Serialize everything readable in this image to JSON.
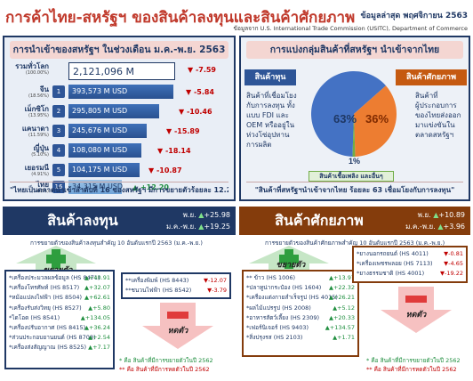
{
  "header": {
    "title": "การค้าไทย-สหรัฐฯ ของสินค้าลงทุนและสินค้าศักยภาพ",
    "update": "ข้อมูลล่าสุด พฤศจิกายน 2563",
    "source": "ข้อมูลจาก U.S. International Trade Commission (USITC), Department of Commerce"
  },
  "imports": {
    "title": "การนำเข้าของสหรัฐฯ ในช่วงเดือน ม.ค.-พ.ย. 2563",
    "rows": [
      {
        "rank": "",
        "country": "รวมทั่วโลก",
        "pct": "(100.00%)",
        "value": "2,121,096 M",
        "change": "-7.59",
        "dir": "down"
      },
      {
        "rank": "1",
        "country": "จีน",
        "pct": "(18.56%)",
        "value": "393,573 M USD",
        "change": "-5.84",
        "dir": "down"
      },
      {
        "rank": "2",
        "country": "เม็กซิโก",
        "pct": "(13.95%)",
        "value": "295,805 M USD",
        "change": "-10.46",
        "dir": "down"
      },
      {
        "rank": "3",
        "country": "แคนาดา",
        "pct": "(11.59%)",
        "value": "245,676 M USD",
        "change": "-15.89",
        "dir": "down"
      },
      {
        "rank": "4",
        "country": "ญี่ปุ่น",
        "pct": "(5.10%)",
        "value": "108,080 M USD",
        "change": "-18.14",
        "dir": "down"
      },
      {
        "rank": "5",
        "country": "เยอรมนี",
        "pct": "(4.91%)",
        "value": "104,175 M USD",
        "change": "-10.87",
        "dir": "down"
      },
      {
        "rank": "16",
        "country": "ไทย",
        "pct": "(1.62%)",
        "value": "34,315 M USD",
        "change": "+12.20",
        "dir": "up"
      }
    ],
    "quote": "\"ไทยเป็นตลาดนำเข้าลำดับที่ 16 ของสหรัฐฯ มีการขยายตัวร้อยละ 12.20\""
  },
  "share": {
    "title": "การแบ่งกลุ่มสินค้าที่สหรัฐฯ นำเข้าจากไทย",
    "capital_label": "สินค้าทุน",
    "potential_label": "สินค้าศักยภาพ",
    "fuel_label": "สินค้าเชื้อเพลิง และอื่นๆ",
    "capital_desc": [
      "สินค้าที่เชื่อมโยง",
      "กับการลงทุน ทั้ง",
      "แบบ FDI และ",
      "OEM หรืออยู่ใน",
      "ห่วงโซ่อุปทาน",
      "การผลิต"
    ],
    "potential_desc": [
      "สินค้าที่",
      "ผู้ประกอบการ",
      "ของไทยส่งออก",
      "มาแข่งขันใน",
      "ตลาดสหรัฐฯ"
    ],
    "pie_labels": {
      "capital": "63%",
      "potential": "36%",
      "fuel": "1%"
    },
    "quote": "\"สินค้าที่สหรัฐฯนำเข้าจากไทย ร้อยละ 63 เชื่อมโยงกับการลงทุน\"",
    "colors": {
      "capital": "#4472c4",
      "potential": "#ed7d31",
      "fuel": "#70ad47"
    }
  },
  "capital": {
    "name": "สินค้าลงทุน",
    "nov_label": "พ.ย.",
    "nov_val": "+25.98",
    "ytd_label": "ม.ค.-พ.ย.",
    "ytd_val": "+19.25",
    "note": "การขยายตัวของสินค้าลงทุนสำคัญ 10 อันดับแรกปี 2563 (ม.ค.-พ.ย.)",
    "grow_label": "ขยายตัว",
    "shrink_label": "หดตัว",
    "grow_items": [
      {
        "t": "*เครื่องประมวลผลข้อมูล (HS 8471)",
        "v": "+40.91"
      },
      {
        "t": "*เครื่องโทรศัพท์ (HS 8517)",
        "v": "+32.07"
      },
      {
        "t": "*หม้อแปลงไฟฟ้า (HS 8504)",
        "v": "+62.61"
      },
      {
        "t": "*เครื่องรับส่งวิทยุ (HS 8527)",
        "v": "+5.80"
      },
      {
        "t": "*ไดโอด (HS 8541)",
        "v": "+134.05"
      },
      {
        "t": "*เครื่องปรับอากาศ (HS 8415)",
        "v": "+36.24"
      },
      {
        "t": "*ส่วนประกอบยานยนต์ (HS 8708)",
        "v": "+2.54"
      },
      {
        "t": "*เครื่องส่งสัญญาณ (HS 8525)",
        "v": "+7.17"
      }
    ],
    "shrink_items": [
      {
        "t": "**เครื่องพิมพ์ (HS 8443)",
        "v": "-12.07"
      },
      {
        "t": "**ชนวนไฟฟ้า (HS 8542)",
        "v": "-3.79"
      }
    ],
    "legend_grow": "* คือ สินค้าที่มีการขยายตัวในปี 2562",
    "legend_shrink": "** คือ สินค้าที่มีการหดตัวในปี 2562"
  },
  "potential": {
    "name": "สินค้าศักยภาพ",
    "nov_label": "พ.ย.",
    "nov_val": "+10.89",
    "ytd_label": "ม.ค.-พ.ย.",
    "ytd_val": "+3.96",
    "note": "การขยายตัวของสินค้าศักยภาพสำคัญ 10 อันดับแรกปี 2563 (ม.ค.-พ.ย.)",
    "grow_label": "ขยายตัว",
    "shrink_label": "หดตัว",
    "grow_items": [
      {
        "t": "** ข้าว (HS 1006)",
        "v": "+13.97"
      },
      {
        "t": "*ปลาทูน่ากระป๋อง (HS 1604)",
        "v": "+22.32"
      },
      {
        "t": "*เครื่องแต่งกายสำเร็จรูป (HS 4015)",
        "v": "+26.21"
      },
      {
        "t": "*ผลไม้แปรรูป (HS 2008)",
        "v": "+5.12"
      },
      {
        "t": "*อาหารสัตว์เลี้ยง (HS 2309)",
        "v": "+20.33"
      },
      {
        "t": "*เฟอร์นิเจอร์ (HS 9403)",
        "v": "+134.57"
      },
      {
        "t": "*สิ่งปรุงรส (HS 2103)",
        "v": "+1.71"
      }
    ],
    "shrink_items": [
      {
        "t": "*ยางนอกรถยนต์ (HS 4011)",
        "v": "-0.81"
      },
      {
        "t": "*เครื่องเพชรพลอย (HS 7113)",
        "v": "-4.65"
      },
      {
        "t": "*ยางธรรมชาติ (HS 4001)",
        "v": "-19.22"
      }
    ],
    "legend_grow": "* คือ สินค้าที่มีการขยายตัวในปี 2562",
    "legend_shrink": "** คือ สินค้าที่มีการหดตัวในปี 2562"
  }
}
